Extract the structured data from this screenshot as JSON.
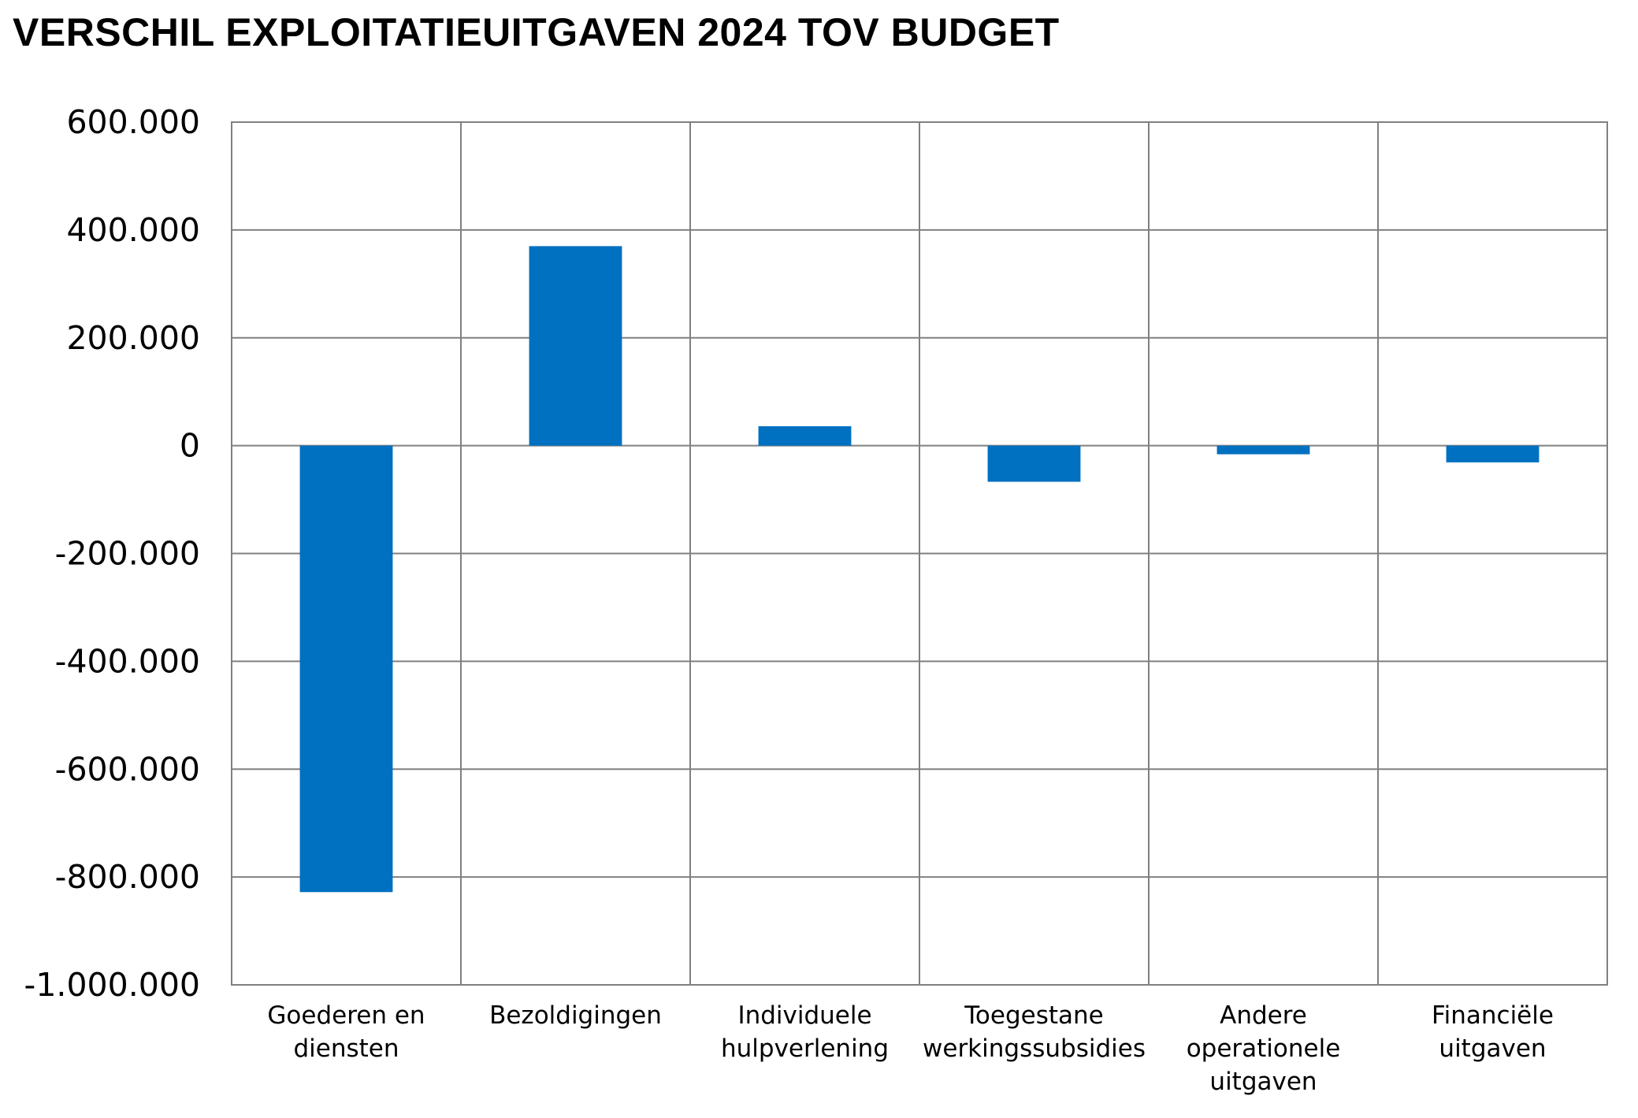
{
  "chart_data": {
    "type": "bar",
    "title": "VERSCHIL EXPLOITATIEUITGAVEN 2024 TOV BUDGET",
    "xlabel": "",
    "ylabel": "",
    "ylim": [
      -1000000,
      600000
    ],
    "y_ticks": [
      600000,
      400000,
      200000,
      0,
      -200000,
      -400000,
      -600000,
      -800000,
      -1000000
    ],
    "y_tick_labels": [
      "600.000",
      "400.000",
      "200.000",
      "0",
      "-200.000",
      "-400.000",
      "-600.000",
      "-800.000",
      "-1.000.000"
    ],
    "categories": [
      [
        "Goederen en",
        "diensten"
      ],
      [
        "Bezoldigingen"
      ],
      [
        "Individuele",
        "hulpverlening"
      ],
      [
        "Toegestane",
        "werkingssubsidies"
      ],
      [
        "Andere",
        "operationele",
        "uitgaven"
      ],
      [
        "Financiële",
        "uitgaven"
      ]
    ],
    "values": [
      -828000,
      370000,
      36000,
      -67000,
      -16000,
      -31000
    ],
    "bar_color": "#0070C0",
    "grid": true,
    "legend": "none"
  }
}
